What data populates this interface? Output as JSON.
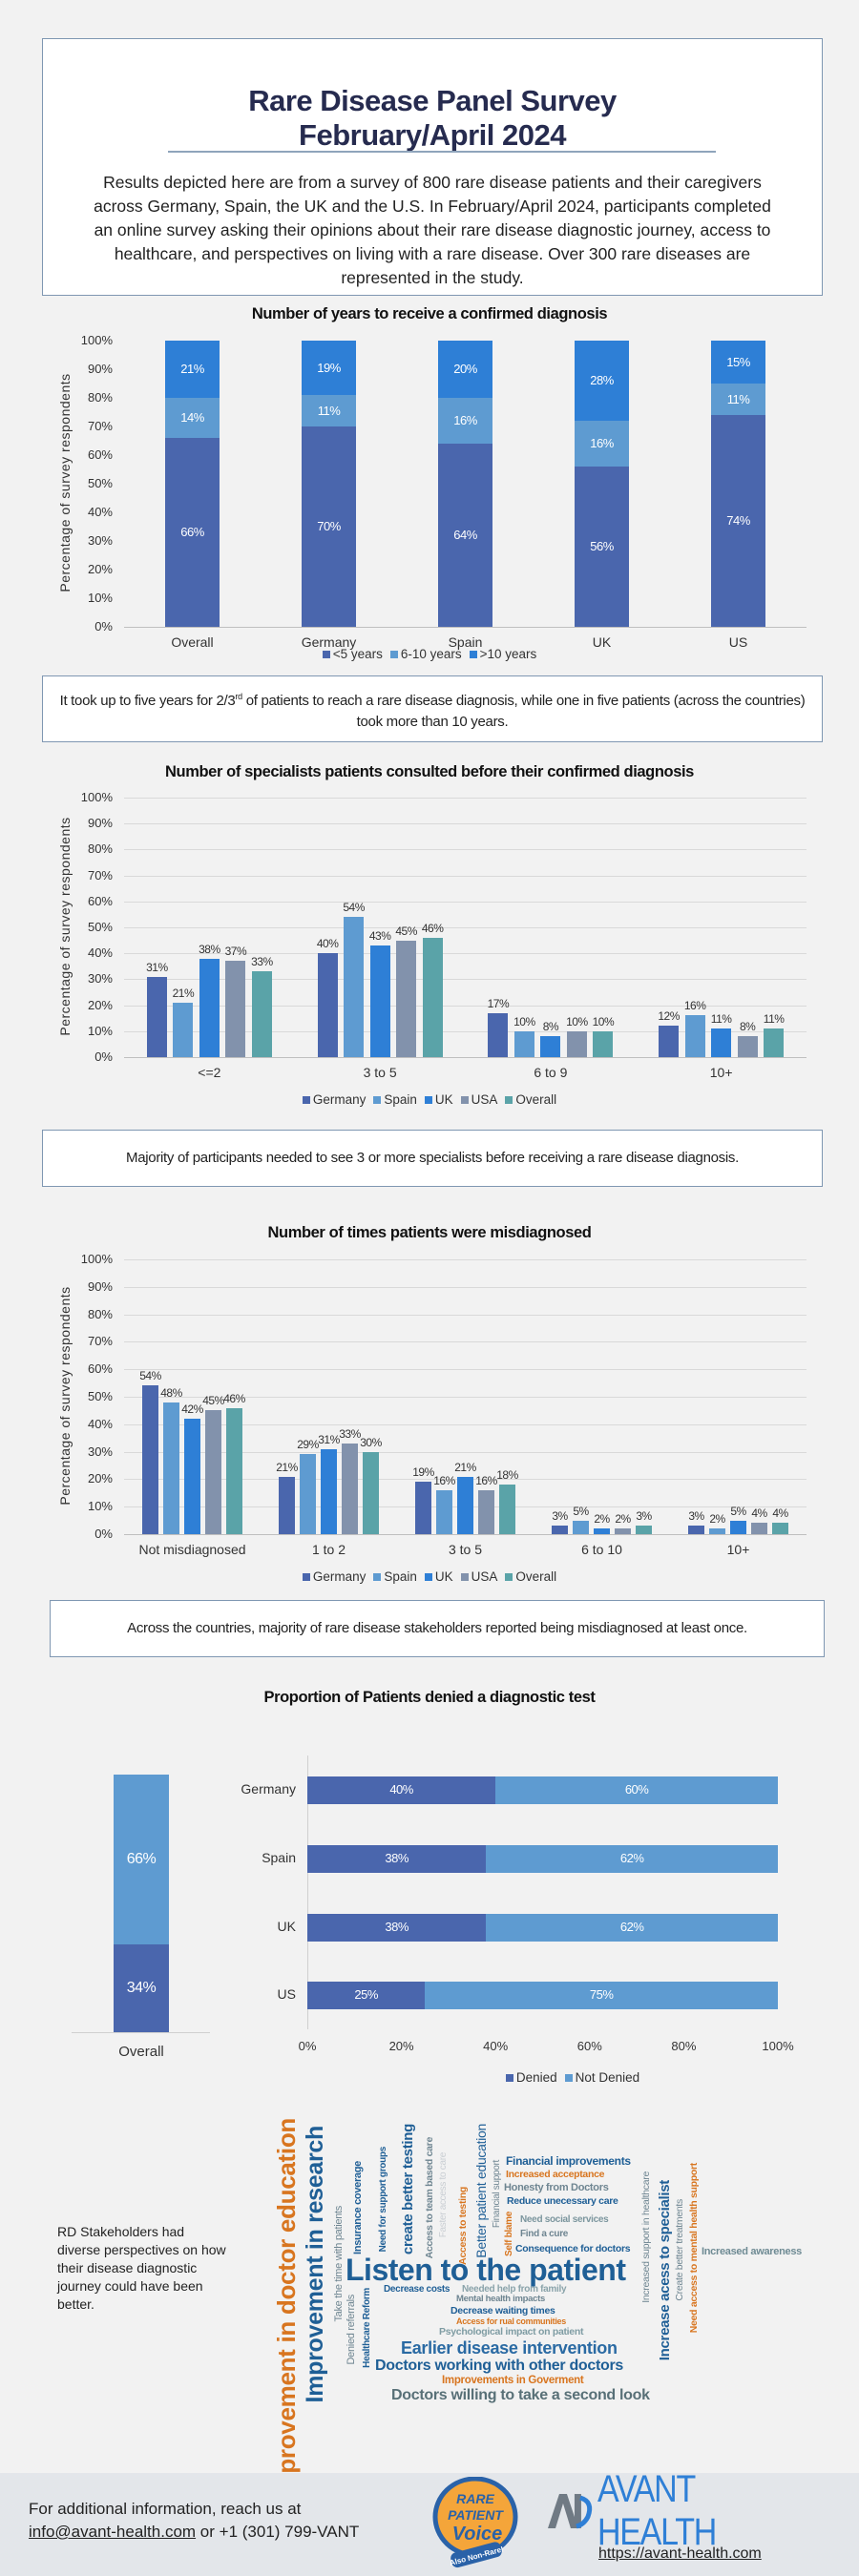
{
  "header": {
    "title_line1": "Rare Disease Panel Survey",
    "title_line2": "February/April 2024",
    "intro": "Results depicted here are from a survey of 800 rare disease patients and their caregivers across Germany, Spain, the UK and the U.S. In February/April 2024, participants completed an online survey asking their opinions about their rare disease diagnostic journey, access to healthcare, and perspectives on living with a rare disease. Over 300 rare diseases are represented in the study."
  },
  "notes": {
    "years_pre": "It took up to five years for 2/3",
    "years_sup": "rd",
    "years_post": " of patients to reach a rare disease diagnosis, while one in five patients (across the countries) took more than 10 years.",
    "specialists": "Majority of participants needed to see 3 or more specialists before receiving a rare disease diagnosis.",
    "misdiagnosed": "Across the countries, majority of rare disease stakeholders reported being misdiagnosed at least once."
  },
  "chart_data": [
    {
      "type": "bar",
      "stacked": true,
      "title": "Number of years to receive a confirmed diagnosis",
      "ylabel": "Percentage of survey respondents",
      "ylim": [
        0,
        100
      ],
      "yticks": [
        "0%",
        "10%",
        "20%",
        "30%",
        "40%",
        "50%",
        "60%",
        "70%",
        "80%",
        "90%",
        "100%"
      ],
      "grid": false,
      "legend": "bottom",
      "categories": [
        "Overall",
        "Germany",
        "Spain",
        "UK",
        "US"
      ],
      "series": [
        {
          "name": "<5 years",
          "color": "#4a66ad",
          "values": [
            66,
            70,
            64,
            56,
            74
          ]
        },
        {
          "name": "6-10 years",
          "color": "#5e9bd1",
          "values": [
            14,
            11,
            16,
            16,
            11
          ]
        },
        {
          "name": ">10 years",
          "color": "#2e7fd6",
          "values": [
            21,
            19,
            20,
            28,
            15
          ]
        }
      ]
    },
    {
      "type": "bar",
      "title": "Number of specialists patients consulted before their confirmed diagnosis",
      "ylabel": "Percentage of survey respondents",
      "ylim": [
        0,
        100
      ],
      "yticks": [
        "0%",
        "10%",
        "20%",
        "30%",
        "40%",
        "50%",
        "60%",
        "70%",
        "80%",
        "90%",
        "100%"
      ],
      "grid": true,
      "legend": "bottom",
      "categories": [
        "<=2",
        "3 to 5",
        "6 to 9",
        "10+"
      ],
      "series": [
        {
          "name": "Germany",
          "color": "#4a66ad",
          "values": [
            31,
            40,
            17,
            12
          ]
        },
        {
          "name": "Spain",
          "color": "#5e9bd1",
          "values": [
            21,
            54,
            10,
            16
          ]
        },
        {
          "name": "UK",
          "color": "#2e7fd6",
          "values": [
            38,
            43,
            8,
            11
          ]
        },
        {
          "name": "USA",
          "color": "#8292ac",
          "values": [
            37,
            45,
            10,
            8
          ]
        },
        {
          "name": "Overall",
          "color": "#5aa3a8",
          "values": [
            33,
            46,
            10,
            11
          ]
        }
      ]
    },
    {
      "type": "bar",
      "title": "Number of times patients were misdiagnosed",
      "ylabel": "Percentage of survey respondents",
      "ylim": [
        0,
        100
      ],
      "yticks": [
        "0%",
        "10%",
        "20%",
        "30%",
        "40%",
        "50%",
        "60%",
        "70%",
        "80%",
        "90%",
        "100%"
      ],
      "grid": true,
      "legend": "bottom",
      "categories": [
        "Not misdiagnosed",
        "1 to 2",
        "3 to 5",
        "6 to 10",
        "10+"
      ],
      "series": [
        {
          "name": "Germany",
          "color": "#4a66ad",
          "values": [
            54,
            21,
            19,
            3,
            3
          ]
        },
        {
          "name": "Spain",
          "color": "#5e9bd1",
          "values": [
            48,
            29,
            16,
            5,
            2
          ]
        },
        {
          "name": "UK",
          "color": "#2e7fd6",
          "values": [
            42,
            31,
            21,
            2,
            5
          ]
        },
        {
          "name": "USA",
          "color": "#8292ac",
          "values": [
            45,
            33,
            16,
            2,
            4
          ]
        },
        {
          "name": "Overall",
          "color": "#5aa3a8",
          "values": [
            46,
            30,
            18,
            3,
            4
          ]
        }
      ]
    },
    {
      "type": "bar",
      "orientation": "horizontal",
      "stacked": true,
      "title": "Proportion of Patients denied a diagnostic test",
      "xlim": [
        0,
        100
      ],
      "xticks": [
        "0%",
        "20%",
        "40%",
        "60%",
        "80%",
        "100%"
      ],
      "legend": "bottom",
      "categories": [
        "Germany",
        "Spain",
        "UK",
        "US"
      ],
      "series": [
        {
          "name": "Denied",
          "color": "#4a66ad",
          "values": [
            40,
            38,
            38,
            25
          ]
        },
        {
          "name": "Not Denied",
          "color": "#5e9bd1",
          "values": [
            60,
            62,
            62,
            75
          ]
        }
      ],
      "overall": {
        "label": "Overall",
        "denied": 34,
        "not_denied": 66
      }
    }
  ],
  "cloud": {
    "caption": "RD Stakeholders had diverse perspectives on how their disease diagnostic journey could have been better.",
    "words": [
      "Improvement in doctor education",
      "Improvement in research",
      "Take the time with patients",
      "Denied referrals",
      "Healthcare Reform",
      "Insurance coverage",
      "Need for support groups",
      "create better testing",
      "Access to team based care",
      "Faster access to care",
      "Access to testing",
      "Better patient education",
      "Financial support",
      "Self blame",
      "Financial improvements",
      "Increased acceptance",
      "Honesty from Doctors",
      "Reduce unecessary care",
      "Need social services",
      "Find a cure",
      "Consequence for doctors",
      "Listen to the patient",
      "Decrease costs",
      "Needed help from family",
      "Mental health impacts",
      "Decrease waiting times",
      "Access for rual communities",
      "Psychological impact on patient",
      "Earlier disease intervention",
      "Doctors working with other doctors",
      "Improvements in Goverment",
      "Doctors willing to take a second look",
      "Increased support in healthcare",
      "Increase acess to specialist",
      "Create better treatments",
      "Need access to mental health support",
      "Increased awareness"
    ]
  },
  "footer": {
    "line1": "For additional information, reach us at",
    "email": "info@avant-health.com",
    "phone": " or +1 (301) 799-VANT",
    "rpv_logo": "RARE PATIENT Voice Also Non-Rare!",
    "avant_logo": "AVANT HEALTH",
    "url": "https://avant-health.com"
  }
}
